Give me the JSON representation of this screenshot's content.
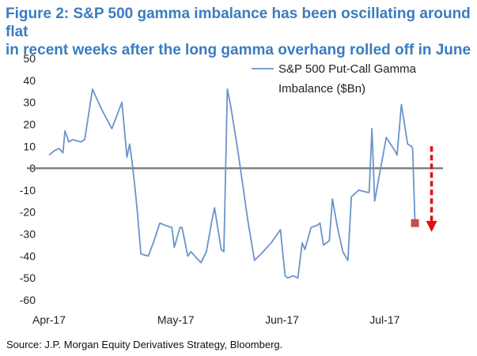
{
  "title_line1": "Figure 2: S&P 500 gamma imbalance has been oscillating around flat",
  "title_line2": "in recent weeks after the long gamma overhang rolled off in June",
  "source": "Source: J.P. Morgan Equity Derivatives Strategy, Bloomberg.",
  "colors": {
    "line": "#6b93cc",
    "axis": "#808080",
    "marker": "#c0504d",
    "arrow": "#e0100e",
    "title": "#3a7cc0"
  },
  "chart_data": {
    "type": "line",
    "title": "",
    "xlabel": "",
    "ylabel": "",
    "ylim": [
      -60,
      50
    ],
    "xlim": [
      0,
      100
    ],
    "yticks": [
      50,
      40,
      30,
      20,
      10,
      0,
      -10,
      -20,
      -30,
      -40,
      -50,
      -60
    ],
    "xticks": [
      {
        "label": "Apr-17",
        "x": 0
      },
      {
        "label": "May-17",
        "x": 32.7
      },
      {
        "label": "Jun-17",
        "x": 60.1
      },
      {
        "label": "Jul-17",
        "x": 86.6
      }
    ],
    "legend": {
      "position": "top-right",
      "lines": [
        "S&P 500 Put-Call Gamma",
        "Imbalance ($Bn)"
      ]
    },
    "series": [
      {
        "name": "S&P 500 Put-Call Gamma Imbalance ($Bn)",
        "x": [
          0,
          1.4,
          2.6,
          3.6,
          4.1,
          5.1,
          6.1,
          8.2,
          9.2,
          11.2,
          13.5,
          16.2,
          18.8,
          20.1,
          20.8,
          21.4,
          22.0,
          22.8,
          23.7,
          25.6,
          26.9,
          28.6,
          29.9,
          31.7,
          32.3,
          33.8,
          34.3,
          35.8,
          36.6,
          38.1,
          39.2,
          40.6,
          42.0,
          42.7,
          44.4,
          45.1,
          46.0,
          46.9,
          48.8,
          50.4,
          51.3,
          53.0,
          54.7,
          57.3,
          59.7,
          60.9,
          61.6,
          63.0,
          64.2,
          65.3,
          66.0,
          67.6,
          69.2,
          69.9,
          70.8,
          72.3,
          73.1,
          74.4,
          75.8,
          77.1,
          78.0,
          79.9,
          82.2,
          82.6,
          83.3,
          84.0,
          87.0,
          89.2,
          89.8,
          90.9,
          92.5,
          93.5,
          93.8,
          94.4
        ],
        "values": [
          6,
          8,
          9,
          7,
          17,
          12,
          13,
          12,
          13,
          36,
          27,
          18,
          30,
          5,
          11,
          3,
          -6,
          -20,
          -39,
          -40,
          -34,
          -25,
          -26,
          -27,
          -36,
          -27,
          -27,
          -40,
          -38,
          -41,
          -43,
          -38,
          -24,
          -18,
          -37,
          -38,
          36,
          28,
          7,
          -13,
          -24,
          -42,
          -39,
          -34,
          -28,
          -49,
          -50,
          -49,
          -50,
          -34,
          -37,
          -27,
          -26,
          -25,
          -35,
          -33,
          -14,
          -27,
          -38,
          -42,
          -13,
          -10,
          -11,
          -11,
          18,
          -15,
          14,
          8,
          6,
          29,
          11,
          10,
          9,
          -25
        ],
        "end_marker": {
          "x": 94.4,
          "y": -25
        }
      }
    ]
  }
}
